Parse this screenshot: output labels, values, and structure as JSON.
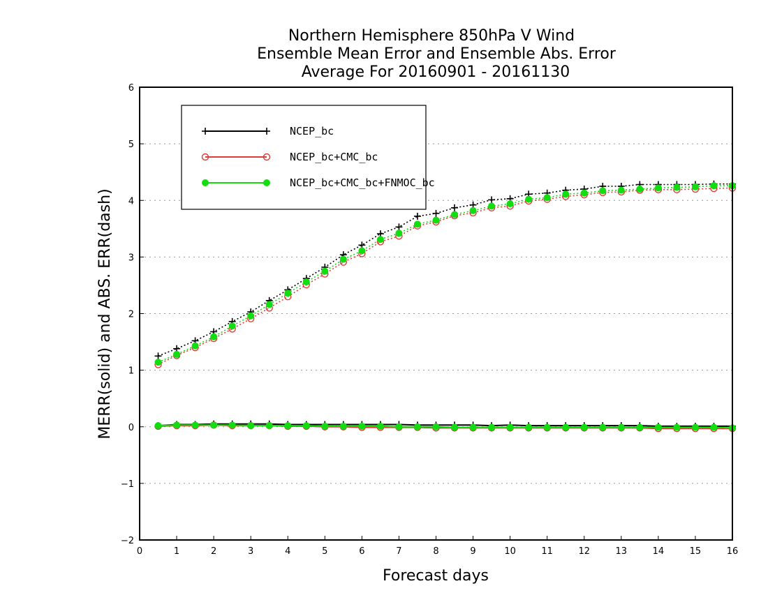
{
  "chart_data": {
    "type": "line",
    "title_lines": [
      "Northern Hemisphere 850hPa V Wind",
      "Ensemble Mean Error and Ensemble Abs. Error",
      "Average For 20160901 - 20161130"
    ],
    "xlabel": "Forecast days",
    "ylabel": "MERR(solid) and ABS. ERR(dash)",
    "xlim": [
      0,
      16
    ],
    "ylim": [
      -2,
      6
    ],
    "xticks": [
      0,
      1,
      2,
      3,
      4,
      5,
      6,
      7,
      8,
      9,
      10,
      11,
      12,
      13,
      14,
      15,
      16
    ],
    "yticks": [
      -2,
      -1,
      0,
      1,
      2,
      3,
      4,
      5,
      6
    ],
    "grid": "horizontal dotted",
    "legend_position": "top-left",
    "x": [
      0.5,
      1,
      1.5,
      2,
      2.5,
      3,
      3.5,
      4,
      4.5,
      5,
      5.5,
      6,
      6.5,
      7,
      7.5,
      8,
      8.5,
      9,
      9.5,
      10,
      10.5,
      11,
      11.5,
      12,
      12.5,
      13,
      13.5,
      14,
      14.5,
      15,
      15.5,
      16
    ],
    "series": [
      {
        "name": "NCEP_bc",
        "color": "#000000",
        "marker": "plus",
        "abs_err": [
          1.25,
          1.38,
          1.52,
          1.68,
          1.86,
          2.03,
          2.23,
          2.42,
          2.62,
          2.82,
          3.04,
          3.21,
          3.41,
          3.53,
          3.72,
          3.77,
          3.87,
          3.92,
          4.01,
          4.03,
          4.11,
          4.13,
          4.18,
          4.2,
          4.25,
          4.25,
          4.28,
          4.28,
          4.28,
          4.28,
          4.29,
          4.29
        ],
        "merr": [
          0.02,
          0.04,
          0.04,
          0.05,
          0.05,
          0.05,
          0.05,
          0.04,
          0.04,
          0.04,
          0.04,
          0.04,
          0.04,
          0.04,
          0.03,
          0.03,
          0.03,
          0.03,
          0.02,
          0.03,
          0.02,
          0.02,
          0.02,
          0.02,
          0.02,
          0.02,
          0.02,
          0.01,
          0.01,
          0.01,
          0.01,
          0.01
        ]
      },
      {
        "name": "NCEP_bc+CMC_bc",
        "color": "#e03b3b",
        "marker": "open-circle",
        "abs_err": [
          1.1,
          1.26,
          1.4,
          1.56,
          1.73,
          1.91,
          2.1,
          2.3,
          2.51,
          2.7,
          2.91,
          3.06,
          3.27,
          3.37,
          3.55,
          3.62,
          3.73,
          3.78,
          3.87,
          3.9,
          3.99,
          4.02,
          4.07,
          4.1,
          4.14,
          4.15,
          4.18,
          4.19,
          4.19,
          4.2,
          4.21,
          4.22
        ],
        "merr": [
          0.01,
          0.02,
          0.02,
          0.03,
          0.02,
          0.02,
          0.02,
          0.01,
          0.01,
          0.0,
          0.0,
          -0.01,
          -0.01,
          -0.01,
          -0.01,
          -0.02,
          -0.02,
          -0.02,
          -0.02,
          -0.02,
          -0.02,
          -0.02,
          -0.02,
          -0.02,
          -0.02,
          -0.02,
          -0.02,
          -0.03,
          -0.03,
          -0.03,
          -0.03,
          -0.03
        ]
      },
      {
        "name": "NCEP_bc+CMC_bc+FNMOC_bc",
        "color": "#11dd11",
        "marker": "filled-circle",
        "abs_err": [
          1.14,
          1.28,
          1.43,
          1.59,
          1.78,
          1.96,
          2.16,
          2.36,
          2.56,
          2.75,
          2.96,
          3.11,
          3.31,
          3.42,
          3.58,
          3.65,
          3.75,
          3.82,
          3.9,
          3.94,
          4.02,
          4.05,
          4.11,
          4.13,
          4.17,
          4.18,
          4.2,
          4.22,
          4.23,
          4.24,
          4.26,
          4.26
        ],
        "merr": [
          0.02,
          0.03,
          0.03,
          0.03,
          0.03,
          0.02,
          0.02,
          0.02,
          0.02,
          0.01,
          0.01,
          0.01,
          0.01,
          0.0,
          0.0,
          0.0,
          -0.01,
          -0.01,
          -0.01,
          -0.01,
          -0.01,
          -0.01,
          -0.01,
          -0.01,
          -0.01,
          -0.01,
          -0.01,
          -0.01,
          -0.01,
          -0.01,
          -0.01,
          -0.02
        ]
      }
    ]
  }
}
